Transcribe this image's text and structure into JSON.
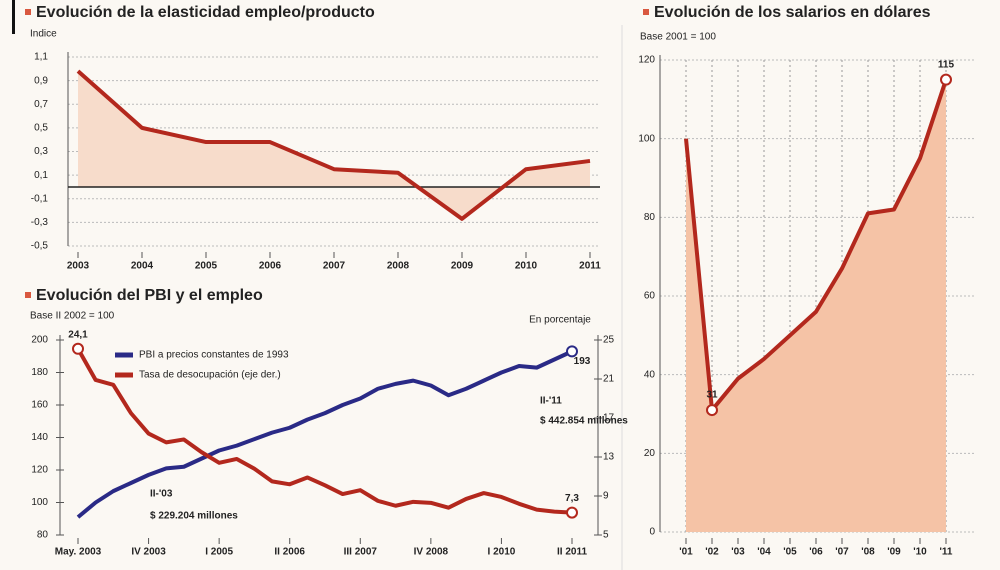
{
  "chart_data": [
    {
      "type": "area",
      "title": "Evolución de la elasticidad empleo/producto",
      "y_label": "Indice",
      "categories": [
        "2003",
        "2004",
        "2005",
        "2006",
        "2007",
        "2008",
        "2009",
        "2010",
        "2011"
      ],
      "values": [
        0.98,
        0.5,
        0.38,
        0.38,
        0.15,
        0.12,
        -0.27,
        0.15,
        0.22
      ],
      "color": "#b3281d",
      "fill": "#f7dccb",
      "ylim": [
        -0.5,
        1.1
      ],
      "yticks": [
        {
          "value": -0.5,
          "label": "-0,5"
        },
        {
          "value": -0.3,
          "label": "-0,3"
        },
        {
          "value": -0.1,
          "label": "-0,1"
        },
        {
          "value": 0.1,
          "label": "0,1"
        },
        {
          "value": 0.3,
          "label": "0,3"
        },
        {
          "value": 0.5,
          "label": "0,5"
        },
        {
          "value": 0.7,
          "label": "0,7"
        },
        {
          "value": 0.9,
          "label": "0,9"
        },
        {
          "value": 1.1,
          "label": "1,1"
        }
      ],
      "grid": true
    },
    {
      "type": "line",
      "title": "Evolución del PBI y el empleo",
      "subtitle": "Base II 2002 = 100",
      "y2_label": "En porcentaje",
      "categories": [
        "May. 2003",
        null,
        null,
        null,
        "IV 2003",
        null,
        null,
        null,
        "I 2005",
        null,
        null,
        null,
        "II 2006",
        null,
        null,
        null,
        "III 2007",
        null,
        null,
        null,
        "IV 2008",
        null,
        null,
        null,
        "I 2010",
        null,
        null,
        null,
        "II 2011"
      ],
      "series": [
        {
          "name": "PBI a  precios constantes de 1993",
          "color": "#2a2a86",
          "values": [
            91,
            100,
            107,
            112,
            117,
            121,
            122,
            127,
            132,
            135,
            139,
            143,
            146,
            151,
            155,
            160,
            164,
            170,
            173,
            175,
            172,
            166,
            170,
            175,
            180,
            184,
            183,
            188,
            193
          ],
          "value_labels": [
            null,
            null,
            null,
            null,
            null,
            null,
            null,
            null,
            null,
            null,
            null,
            null,
            null,
            null,
            null,
            null,
            null,
            null,
            null,
            null,
            null,
            null,
            null,
            null,
            null,
            null,
            null,
            null,
            "193"
          ]
        },
        {
          "name": "Tasa de desocupación (eje der.)",
          "color": "#b3281d",
          "axis": "y2",
          "values": [
            24.1,
            20.9,
            20.4,
            17.5,
            15.4,
            14.5,
            14.8,
            13.5,
            12.4,
            12.8,
            11.8,
            10.5,
            10.2,
            10.9,
            10.1,
            9.2,
            9.6,
            8.5,
            8.0,
            8.4,
            8.3,
            7.8,
            8.7,
            9.3,
            8.9,
            8.2,
            7.6,
            7.4,
            7.3
          ],
          "value_labels": [
            "24,1",
            null,
            null,
            null,
            null,
            null,
            null,
            null,
            null,
            null,
            null,
            null,
            null,
            null,
            null,
            null,
            null,
            null,
            null,
            null,
            null,
            null,
            null,
            null,
            null,
            null,
            null,
            null,
            "7,3"
          ]
        }
      ],
      "ylim": [
        80,
        200
      ],
      "yticks": [
        80,
        100,
        120,
        140,
        160,
        180,
        200
      ],
      "y2lim": [
        5,
        25
      ],
      "y2ticks": [
        5,
        9,
        13,
        17,
        21,
        25
      ],
      "legend": "upper left",
      "annotations": [
        "II-'03",
        "$ 229.204 millones",
        "II-'11",
        "$ 442.854 millones"
      ]
    },
    {
      "type": "area",
      "title": "Evolución de los salarios en dólares",
      "subtitle": "Base 2001 = 100",
      "categories": [
        "'01",
        "'02",
        "'03",
        "'04",
        "'05",
        "'06",
        "'07",
        "'08",
        "'09",
        "'10",
        "'11"
      ],
      "values": [
        100,
        31,
        39,
        44,
        50,
        56,
        67,
        81,
        82,
        95,
        115
      ],
      "value_labels": [
        null,
        "31",
        null,
        null,
        null,
        null,
        null,
        null,
        null,
        null,
        "115"
      ],
      "color": "#b3281d",
      "fill": "#f5c3a6",
      "ylim": [
        0,
        120
      ],
      "yticks": [
        0,
        20,
        40,
        60,
        80,
        100,
        120
      ],
      "grid": true,
      "xgrid": true
    }
  ]
}
